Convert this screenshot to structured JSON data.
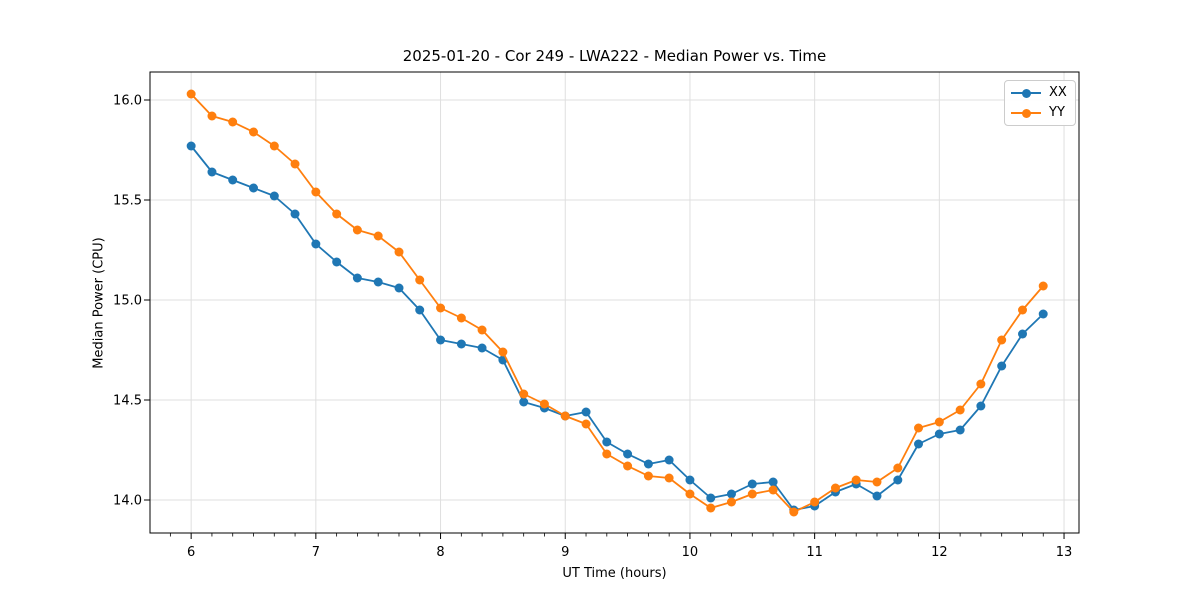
{
  "chart_data": {
    "type": "line",
    "title": "2025-01-20 - Cor 249 - LWA222 - Median Power vs. Time",
    "xlabel": "UT Time (hours)",
    "ylabel": "Median Power (CPU)",
    "xlim": [
      5.67,
      13.12
    ],
    "ylim": [
      13.835,
      16.14
    ],
    "xtick_values": [
      6,
      7,
      8,
      9,
      10,
      11,
      12,
      13
    ],
    "xtick_labels": [
      "6",
      "7",
      "8",
      "9",
      "10",
      "11",
      "12",
      "13"
    ],
    "ytick_values": [
      14.0,
      14.5,
      15.0,
      15.5,
      16.0
    ],
    "ytick_labels": [
      "14.0",
      "14.5",
      "15.0",
      "15.5",
      "16.0"
    ],
    "x_minor_tick_step_hours": 0.1667,
    "grid": "major",
    "grid_color": "#dfdfdf",
    "legend_position": "upper right",
    "x": [
      6.0,
      6.167,
      6.333,
      6.5,
      6.667,
      6.833,
      7.0,
      7.167,
      7.333,
      7.5,
      7.667,
      7.833,
      8.0,
      8.167,
      8.333,
      8.5,
      8.667,
      8.833,
      9.0,
      9.167,
      9.333,
      9.5,
      9.667,
      9.833,
      10.0,
      10.167,
      10.333,
      10.5,
      10.667,
      10.833,
      11.0,
      11.167,
      11.333,
      11.5,
      11.667,
      11.833,
      12.0,
      12.167,
      12.333,
      12.5,
      12.667,
      12.833
    ],
    "series": [
      {
        "name": "XX",
        "color": "#1f77b4",
        "values": [
          15.77,
          15.64,
          15.6,
          15.56,
          15.52,
          15.43,
          15.28,
          15.19,
          15.11,
          15.09,
          15.06,
          14.95,
          14.8,
          14.78,
          14.76,
          14.7,
          14.49,
          14.46,
          14.42,
          14.44,
          14.29,
          14.23,
          14.18,
          14.2,
          14.1,
          14.01,
          14.03,
          14.08,
          14.09,
          13.95,
          13.97,
          14.04,
          14.08,
          14.02,
          14.1,
          14.28,
          14.33,
          14.35,
          14.47,
          14.67,
          14.83,
          14.93
        ]
      },
      {
        "name": "YY",
        "color": "#ff7f0e",
        "values": [
          16.03,
          15.92,
          15.89,
          15.84,
          15.77,
          15.68,
          15.54,
          15.43,
          15.35,
          15.32,
          15.24,
          15.1,
          14.96,
          14.91,
          14.85,
          14.74,
          14.53,
          14.48,
          14.42,
          14.38,
          14.23,
          14.17,
          14.12,
          14.11,
          14.03,
          13.96,
          13.99,
          14.03,
          14.05,
          13.94,
          13.99,
          14.06,
          14.1,
          14.09,
          14.16,
          14.36,
          14.39,
          14.45,
          14.58,
          14.8,
          14.95,
          15.07
        ]
      }
    ]
  }
}
